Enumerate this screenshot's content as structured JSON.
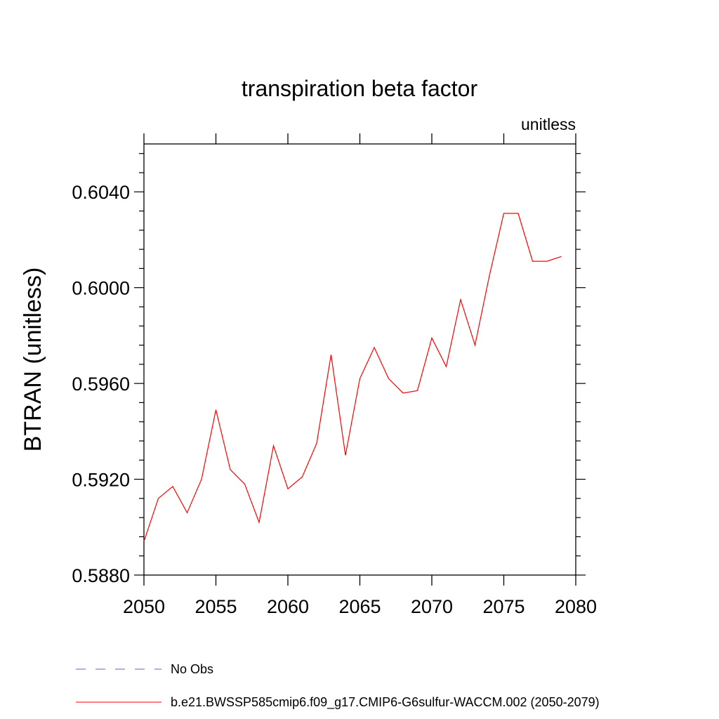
{
  "chart_data": {
    "type": "line",
    "title": "transpiration beta factor",
    "units_label": "unitless",
    "ylabel": "BTRAN  (unitless)",
    "xlabel": "",
    "xlim": [
      2050,
      2080
    ],
    "ylim": [
      0.588,
      0.606
    ],
    "x_ticks": [
      2050,
      2055,
      2060,
      2065,
      2070,
      2075,
      2080
    ],
    "x_tick_labels": [
      "2050",
      "2055",
      "2060",
      "2065",
      "2070",
      "2075",
      "2080"
    ],
    "y_ticks": [
      0.588,
      0.592,
      0.596,
      0.6,
      0.604
    ],
    "y_tick_labels": [
      "0.5880",
      "0.5920",
      "0.5960",
      "0.6000",
      "0.6040"
    ],
    "grid": false,
    "legend_position": "bottom",
    "series": [
      {
        "name": "b.e21.BWSSP585cmip6.f09_g17.CMIP6-G6sulfur-WACCM.002 (2050-2079)",
        "color": "#ff0000",
        "style": "solid",
        "x": [
          2050,
          2051,
          2052,
          2053,
          2054,
          2055,
          2056,
          2057,
          2058,
          2059,
          2060,
          2061,
          2062,
          2063,
          2064,
          2065,
          2066,
          2067,
          2068,
          2069,
          2070,
          2071,
          2072,
          2073,
          2074,
          2075,
          2076,
          2077,
          2078,
          2079
        ],
        "y": [
          0.5894,
          0.5912,
          0.5917,
          0.5906,
          0.592,
          0.5949,
          0.5924,
          0.5918,
          0.5902,
          0.5934,
          0.5916,
          0.5921,
          0.5935,
          0.5972,
          0.593,
          0.5962,
          0.5975,
          0.5962,
          0.5956,
          0.5957,
          0.5979,
          0.5967,
          0.5995,
          0.5976,
          0.6005,
          0.6031,
          0.6031,
          0.6011,
          0.6011,
          0.6013
        ]
      }
    ],
    "legend": [
      {
        "label": "No Obs",
        "color": "#6a5acd",
        "style": "dashed"
      },
      {
        "label": "b.e21.BWSSP585cmip6.f09_g17.CMIP6-G6sulfur-WACCM.002 (2050-2079)",
        "color": "#ff0000",
        "style": "solid"
      }
    ]
  }
}
